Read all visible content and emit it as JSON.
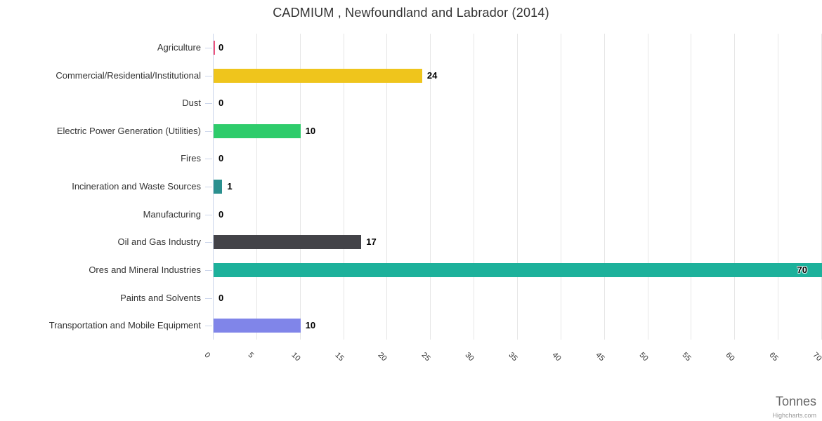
{
  "title": "CADMIUM , Newfoundland and Labrador (2014)",
  "credit": "Highcharts.com",
  "chart_data": {
    "type": "bar",
    "orientation": "horizontal",
    "title": "CADMIUM , Newfoundland and Labrador (2014)",
    "xlabel": "Tonnes",
    "ylabel": "",
    "categories": [
      "Agriculture",
      "Commercial/Residential/Institutional",
      "Dust",
      "Electric Power Generation (Utilities)",
      "Fires",
      "Incineration and Waste Sources",
      "Manufacturing",
      "Oil and Gas Industry",
      "Ores and Mineral Industries",
      "Paints and Solvents",
      "Transportation and Mobile Equipment"
    ],
    "values": [
      0,
      24,
      0,
      10,
      0,
      1,
      0,
      17,
      70,
      0,
      10
    ],
    "data_labels": [
      "0",
      "24",
      "0",
      "10",
      "0",
      "1",
      "0",
      "17",
      "70",
      "0",
      "10"
    ],
    "bar_colors": [
      "#f0537b",
      "#efc51c",
      null,
      "#2ecc6b",
      null,
      "#2b908f",
      null,
      "#434348",
      "#1db19b",
      null,
      "#8085e9"
    ],
    "xlim": [
      0,
      70
    ],
    "tick_interval": 5,
    "tick_labels": [
      "0",
      "5",
      "10",
      "15",
      "20",
      "25",
      "30",
      "35",
      "40",
      "45",
      "50",
      "55",
      "60",
      "65",
      "70"
    ],
    "grid": true,
    "legend": false
  },
  "colors": {
    "background": "#ffffff",
    "grid_line": "#e6e6e6",
    "axis_line": "#ccd6eb",
    "category_tick": "#ccd6eb",
    "title_text": "#333333",
    "category_text": "#333333",
    "value_text": "#000000",
    "xtick_text": "#333333",
    "xaxis_title_text": "#666666",
    "credit_text": "#999999"
  }
}
